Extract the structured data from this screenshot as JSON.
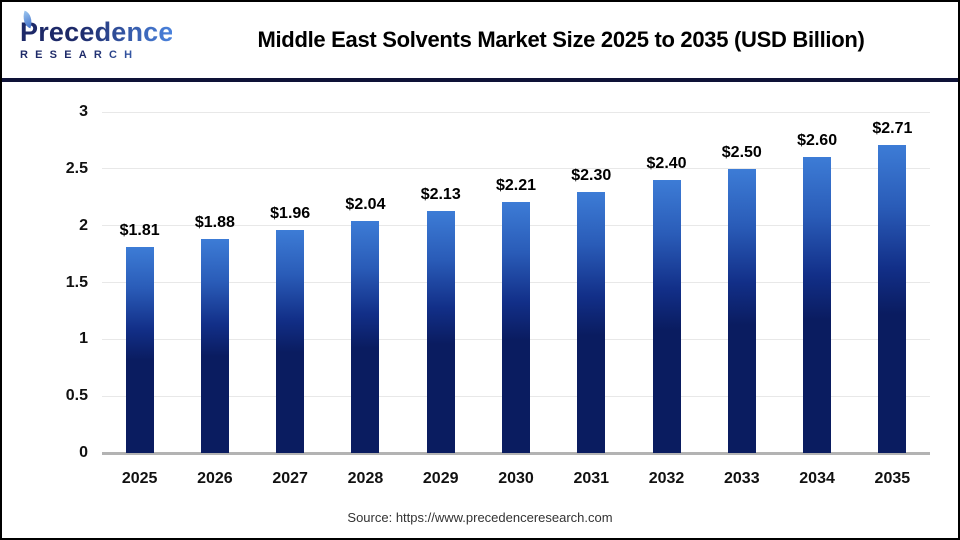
{
  "header": {
    "logo": {
      "brand": "Precedence",
      "subtitle": "RESEARCH"
    },
    "title": "Middle East Solvents Market Size 2025 to 2035 (USD Billion)"
  },
  "chart_data": {
    "type": "bar",
    "title": "Middle East Solvents Market Size 2025 to 2035 (USD Billion)",
    "categories": [
      "2025",
      "2026",
      "2027",
      "2028",
      "2029",
      "2030",
      "2031",
      "2032",
      "2033",
      "2034",
      "2035"
    ],
    "values": [
      1.81,
      1.88,
      1.96,
      2.04,
      2.13,
      2.21,
      2.3,
      2.4,
      2.5,
      2.6,
      2.71
    ],
    "value_labels": [
      "$1.81",
      "$1.88",
      "$1.96",
      "$2.04",
      "$2.13",
      "$2.21",
      "$2.30",
      "$2.40",
      "$2.50",
      "$2.60",
      "$2.71"
    ],
    "xlabel": "",
    "ylabel": "",
    "ylim": [
      0,
      3
    ],
    "yticks": [
      0,
      0.5,
      1,
      1.5,
      2,
      2.5,
      3
    ],
    "ytick_labels": [
      "0",
      "0.5",
      "1",
      "1.5",
      "2",
      "2.5",
      "3"
    ],
    "grid": true,
    "legend": false
  },
  "footer": {
    "source": "Source: https://www.precedenceresearch.com"
  },
  "colors": {
    "bar_gradient_top": "#3d7cd6",
    "bar_gradient_bottom": "#0a1c60",
    "divider": "#0e1237",
    "logo_navy": "#1d2968",
    "logo_blue": "#4a82dd",
    "gridline": "#e8e8e8",
    "axis_line": "#b3b3b3"
  }
}
